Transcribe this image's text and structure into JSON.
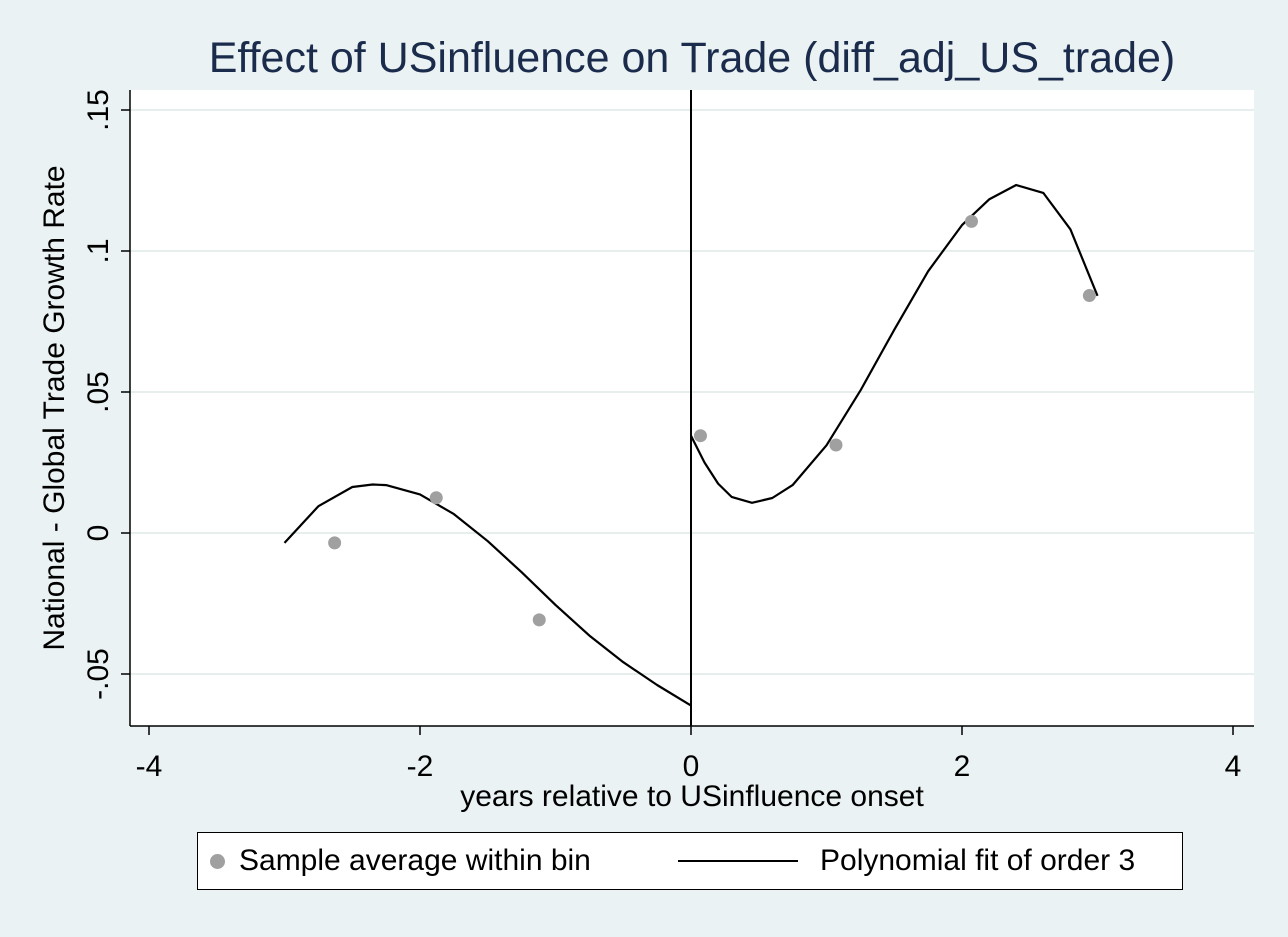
{
  "chart_data": {
    "type": "scatter",
    "title": "Effect of USinfluence on Trade (diff_adj_US_trade)",
    "xlabel": "years relative to USinfluence onset",
    "ylabel": "National - Global Trade Growth Rate",
    "xlim": [
      -4,
      4
    ],
    "ylim": [
      -0.065,
      0.155
    ],
    "xticks": [
      -4,
      -2,
      0,
      2,
      4
    ],
    "xtick_labels": [
      "-4",
      "-2",
      "0",
      "2",
      "4"
    ],
    "yticks": [
      -0.05,
      0,
      0.05,
      0.1,
      0.15
    ],
    "ytick_labels": [
      "-.05",
      "0",
      ".05",
      ".1",
      ".15"
    ],
    "grid": true,
    "cutoff": 0,
    "legend_position": "bottom",
    "series": [
      {
        "name": "Sample average within bin",
        "kind": "scatter",
        "color": "#a0a0a0",
        "x": [
          -2.63,
          -1.88,
          -1.12,
          0.07,
          1.07,
          2.07,
          2.94
        ],
        "y": [
          -0.0035,
          0.0125,
          -0.0308,
          0.0345,
          0.0312,
          0.1105,
          0.0842
        ]
      },
      {
        "name": "Polynomial fit of order 3",
        "kind": "line",
        "color": "#000000",
        "segments": [
          {
            "x": [
              -3.0,
              -2.75,
              -2.5,
              -2.35,
              -2.25,
              -2.0,
              -1.75,
              -1.5,
              -1.25,
              -1.0,
              -0.75,
              -0.5,
              -0.25,
              0.0
            ],
            "y": [
              -0.0035,
              0.0095,
              0.0163,
              0.0172,
              0.017,
              0.0137,
              0.0067,
              -0.0029,
              -0.0139,
              -0.0255,
              -0.0364,
              -0.0458,
              -0.0539,
              -0.0612
            ]
          },
          {
            "x": [
              0.0,
              0.1,
              0.2,
              0.3,
              0.45,
              0.6,
              0.75,
              1.0,
              1.25,
              1.5,
              1.75,
              2.0,
              2.2,
              2.4,
              2.6,
              2.8,
              3.0
            ],
            "y": [
              0.0345,
              0.025,
              0.0175,
              0.0128,
              0.0107,
              0.0124,
              0.017,
              0.0311,
              0.0505,
              0.0721,
              0.0928,
              0.1092,
              0.1183,
              0.1234,
              0.1206,
              0.1077,
              0.0841
            ]
          }
        ]
      }
    ]
  }
}
